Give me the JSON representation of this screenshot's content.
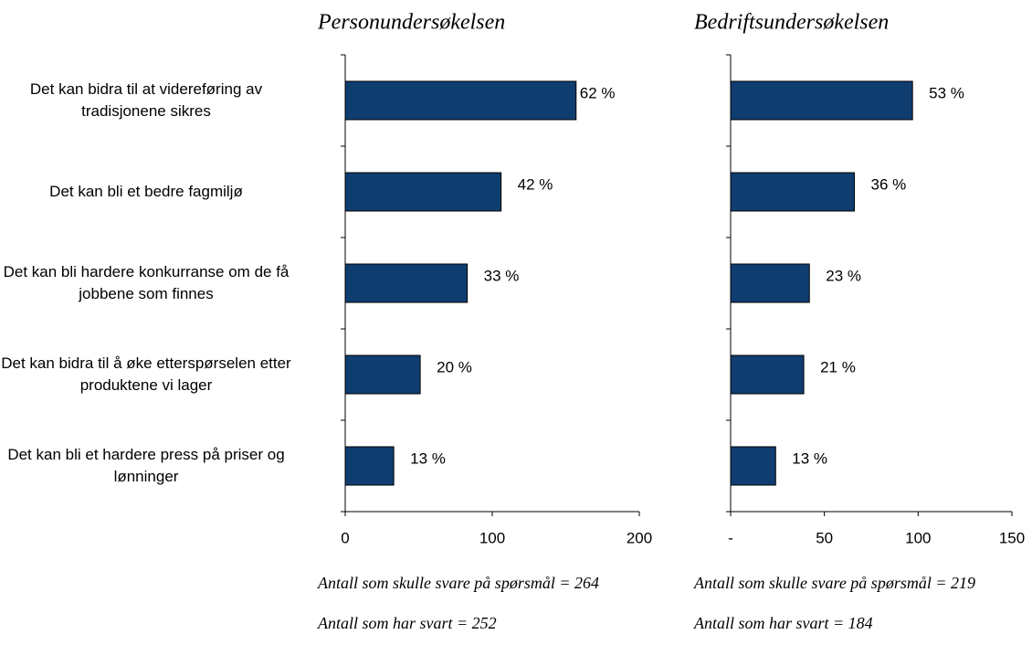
{
  "chart_data": [
    {
      "type": "barh",
      "title": "Personundersøkelsen",
      "categories": [
        "Det kan bidra til at videreføring av tradisjonene sikres",
        "Det kan bli et bedre fagmiljø",
        "Det kan bli hardere konkurranse om de få jobbene som finnes",
        "Det kan bidra til å øke etterspørselen etter produktene vi lager",
        "Det kan bli et hardere press på priser og lønninger"
      ],
      "values": [
        157,
        106,
        83,
        51,
        33
      ],
      "value_labels": [
        "62 %",
        "42 %",
        "33 %",
        "20 %",
        "13 %"
      ],
      "color": "#0f3d70",
      "xlim": [
        0,
        200
      ],
      "xticks": [
        0,
        100,
        200
      ],
      "notes": [
        "Antall som skulle svare på spørsmål = 264",
        "Antall som har svart = 252"
      ]
    },
    {
      "type": "barh",
      "title": "Bedriftsundersøkelsen",
      "values": [
        97,
        66,
        42,
        39,
        24
      ],
      "value_labels": [
        "53 %",
        "36 %",
        "23 %",
        "21 %",
        "13 %"
      ],
      "color": "#0f3d70",
      "xlim": [
        0,
        150
      ],
      "xticks": [
        {
          "value": 0,
          "label": "-"
        },
        50,
        100,
        150
      ],
      "notes": [
        "Antall som skulle svare på spørsmål = 219",
        "Antall som har svart = 184"
      ]
    }
  ]
}
